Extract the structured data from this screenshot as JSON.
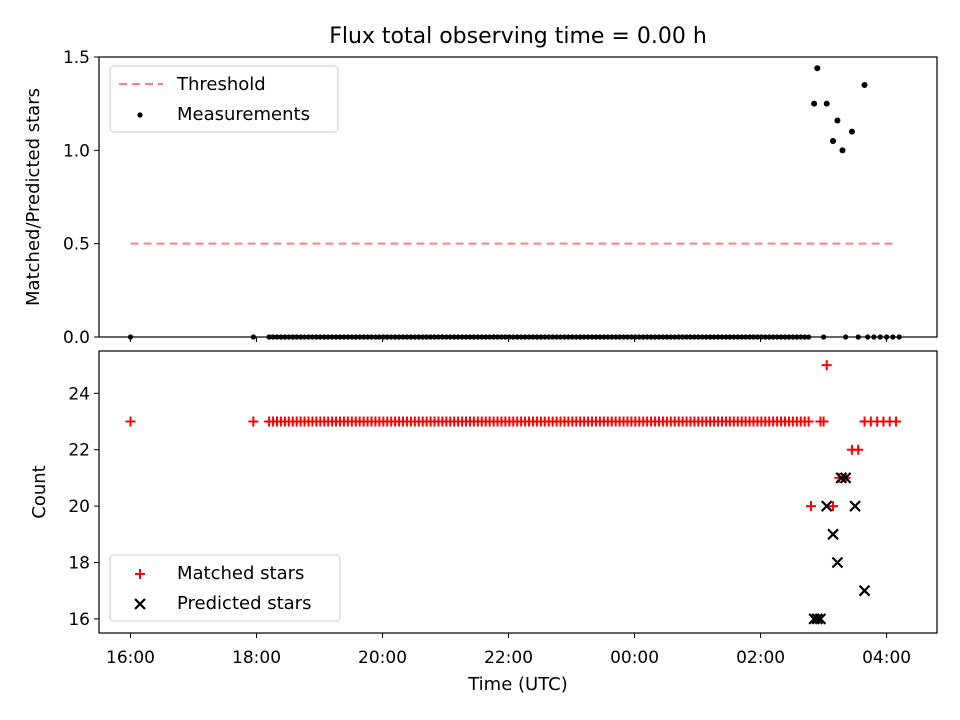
{
  "chart_data": {
    "title": "Flux total observing time = 0.00 h",
    "xlabel": "Time (UTC)",
    "x_ticks": [
      "16:00",
      "18:00",
      "20:00",
      "22:00",
      "00:00",
      "02:00",
      "04:00"
    ],
    "x_tick_hours": [
      16,
      18,
      20,
      22,
      24,
      26,
      28
    ],
    "xlim_hours": [
      15.5,
      28.8
    ],
    "panels": [
      {
        "type": "scatter",
        "ylabel": "Matched/Predicted stars",
        "ylim": [
          0,
          1.5
        ],
        "y_ticks": [
          0.0,
          0.5,
          1.0,
          1.5
        ],
        "y_tick_labels": [
          "0.0",
          "0.5",
          "1.0",
          "1.5"
        ],
        "legend_position": "upper-left",
        "threshold": {
          "name": "Threshold",
          "value": 0.5,
          "x_start_hour": 16.0,
          "x_end_hour": 28.1,
          "color": "#ff7f7f"
        },
        "measurements": {
          "name": "Measurements",
          "color": "#000000",
          "zero_points": {
            "hours": [
              16.0,
              17.95
            ],
            "range": [
              18.2,
              26.8
            ],
            "step": 0.0625,
            "extra_hours": [
              27.0,
              27.35,
              27.55,
              27.7,
              27.8,
              27.9,
              28.0,
              28.1,
              28.2
            ],
            "value": 0
          },
          "points": [
            {
              "x": 26.85,
              "y": 1.25
            },
            {
              "x": 26.9,
              "y": 1.44
            },
            {
              "x": 27.05,
              "y": 1.25
            },
            {
              "x": 27.15,
              "y": 1.05
            },
            {
              "x": 27.22,
              "y": 1.16
            },
            {
              "x": 27.3,
              "y": 1.0
            },
            {
              "x": 27.45,
              "y": 1.1
            },
            {
              "x": 27.65,
              "y": 1.35
            }
          ]
        }
      },
      {
        "type": "scatter",
        "ylabel": "Count",
        "ylim": [
          15.5,
          25.5
        ],
        "y_ticks": [
          16,
          18,
          20,
          22,
          24
        ],
        "y_tick_labels": [
          "16",
          "18",
          "20",
          "22",
          "24"
        ],
        "legend_position": "lower-left",
        "matched": {
          "name": "Matched stars",
          "color": "#ff0000",
          "constant": {
            "hours": [
              16.0,
              17.95
            ],
            "range": [
              18.2,
              26.8
            ],
            "step": 0.0625,
            "value": 23
          },
          "points": [
            {
              "x": 26.8,
              "y": 20
            },
            {
              "x": 26.95,
              "y": 23
            },
            {
              "x": 27.0,
              "y": 23
            },
            {
              "x": 27.05,
              "y": 25
            },
            {
              "x": 27.15,
              "y": 20
            },
            {
              "x": 27.25,
              "y": 21
            },
            {
              "x": 27.35,
              "y": 21
            },
            {
              "x": 27.45,
              "y": 22
            },
            {
              "x": 27.55,
              "y": 22
            },
            {
              "x": 27.65,
              "y": 23
            },
            {
              "x": 27.75,
              "y": 23
            },
            {
              "x": 27.85,
              "y": 23
            },
            {
              "x": 27.95,
              "y": 23
            },
            {
              "x": 28.05,
              "y": 23
            },
            {
              "x": 28.15,
              "y": 23
            }
          ]
        },
        "predicted": {
          "name": "Predicted stars",
          "color": "#000000",
          "points": [
            {
              "x": 26.85,
              "y": 16
            },
            {
              "x": 26.9,
              "y": 16
            },
            {
              "x": 26.95,
              "y": 16
            },
            {
              "x": 27.05,
              "y": 20
            },
            {
              "x": 27.15,
              "y": 19
            },
            {
              "x": 27.22,
              "y": 18
            },
            {
              "x": 27.28,
              "y": 21
            },
            {
              "x": 27.35,
              "y": 21
            },
            {
              "x": 27.5,
              "y": 20
            },
            {
              "x": 27.65,
              "y": 17
            }
          ]
        }
      }
    ]
  }
}
